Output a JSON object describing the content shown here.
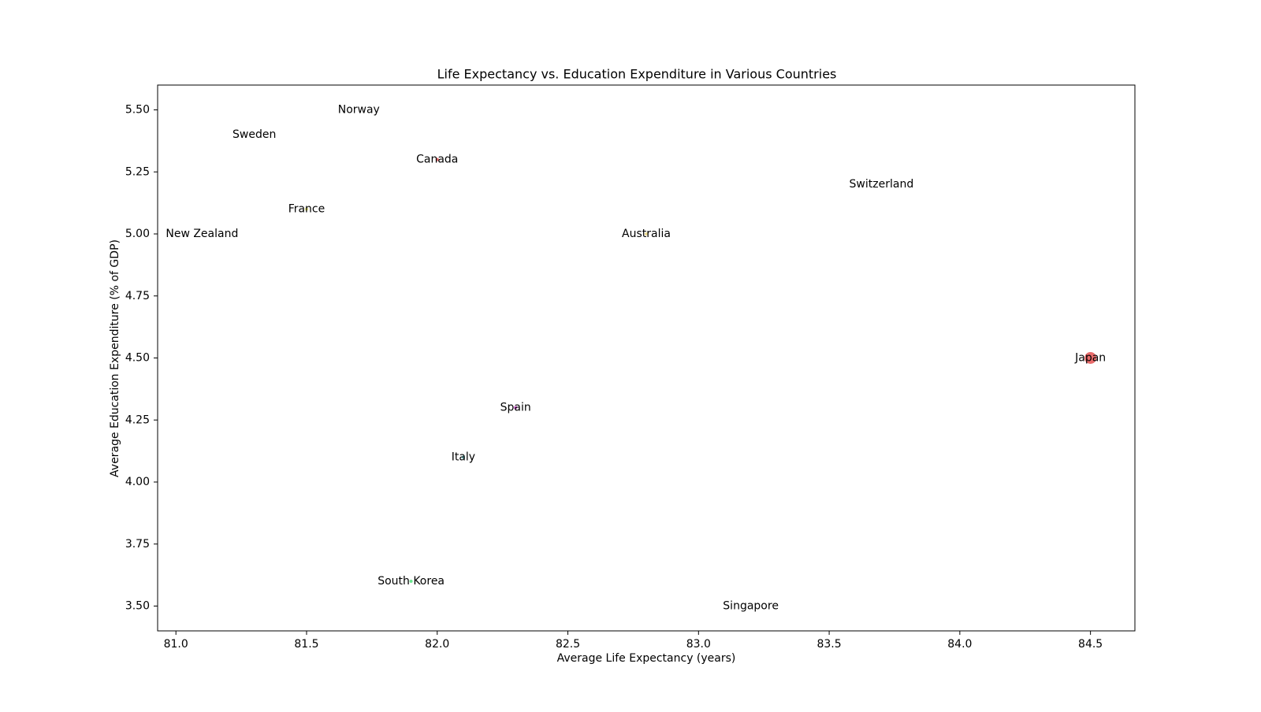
{
  "chart_data": {
    "type": "scatter",
    "title": "Life Expectancy vs. Education Expenditure in Various Countries",
    "xlabel": "Average Life Expectancy (years)",
    "ylabel": "Average Education Expenditure (% of GDP)",
    "xlim": [
      80.93,
      84.67
    ],
    "ylim": [
      3.4,
      5.6
    ],
    "xticks": [
      81.0,
      81.5,
      82.0,
      82.5,
      83.0,
      83.5,
      84.0,
      84.5
    ],
    "xtick_labels": [
      "81.0",
      "81.5",
      "82.0",
      "82.5",
      "83.0",
      "83.5",
      "84.0",
      "84.5"
    ],
    "yticks": [
      3.5,
      3.75,
      4.0,
      4.25,
      4.5,
      4.75,
      5.0,
      5.25,
      5.5
    ],
    "ytick_labels": [
      "3.50",
      "3.75",
      "4.00",
      "4.25",
      "4.50",
      "4.75",
      "5.00",
      "5.25",
      "5.50"
    ],
    "grid": false,
    "legend": "none",
    "points": [
      {
        "label": "Norway",
        "x": 81.7,
        "y": 5.5,
        "color": "#4b0fb4",
        "size": 0
      },
      {
        "label": "Sweden",
        "x": 81.3,
        "y": 5.4,
        "color": "#1f77b4",
        "size": 0
      },
      {
        "label": "Canada",
        "x": 82.0,
        "y": 5.3,
        "color": "#e03a3a",
        "size": 1
      },
      {
        "label": "Switzerland",
        "x": 83.7,
        "y": 5.2,
        "color": "#2a9d8f",
        "size": 0
      },
      {
        "label": "France",
        "x": 81.5,
        "y": 5.1,
        "color": "#e8e85a",
        "size": 1
      },
      {
        "label": "New Zealand",
        "x": 81.1,
        "y": 5.0,
        "color": "#1f77b4",
        "size": 0
      },
      {
        "label": "Australia",
        "x": 82.8,
        "y": 5.0,
        "color": "#e8d070",
        "size": 0.5
      },
      {
        "label": "Japan",
        "x": 84.5,
        "y": 4.5,
        "color": "#e03a3a",
        "size": 5
      },
      {
        "label": "Spain",
        "x": 82.3,
        "y": 4.3,
        "color": "#c020c0",
        "size": 1.2
      },
      {
        "label": "Italy",
        "x": 82.1,
        "y": 4.1,
        "color": "#3ab0b0",
        "size": 1
      },
      {
        "label": "South Korea",
        "x": 81.9,
        "y": 3.6,
        "color": "#3adc6a",
        "size": 1.2
      },
      {
        "label": "Singapore",
        "x": 83.2,
        "y": 3.5,
        "color": "#1f77b4",
        "size": 0
      }
    ]
  }
}
